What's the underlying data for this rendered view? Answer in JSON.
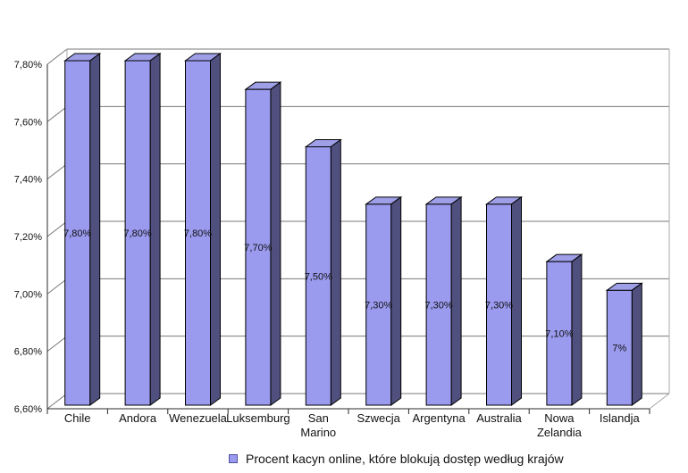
{
  "chart_data": {
    "type": "bar",
    "style_3d": true,
    "categories": [
      "Chile",
      "Andora",
      "Wenezuela",
      "Luksemburg",
      "San\nMarino",
      "Szwecja",
      "Argentyna",
      "Australia",
      "Nowa\nZelandia",
      "Islandja"
    ],
    "values": [
      7.8,
      7.8,
      7.8,
      7.7,
      7.5,
      7.3,
      7.3,
      7.3,
      7.1,
      7.0
    ],
    "value_labels": [
      "7,80%",
      "7,80%",
      "7,80%",
      "7,70%",
      "7,50%",
      "7,30%",
      "7,30%",
      "7,30%",
      "7,10%",
      "7%"
    ],
    "y_axis": {
      "min": 6.6,
      "max": 7.8,
      "step": 0.2,
      "tick_values": [
        6.6,
        6.8,
        7.0,
        7.2,
        7.4,
        7.6,
        7.8
      ],
      "tick_labels": [
        "6,60%",
        "6,80%",
        "7,00%",
        "7,20%",
        "7,40%",
        "7,60%",
        "7,80%"
      ]
    },
    "xlabel": "",
    "ylabel": "",
    "grid": true,
    "legend": {
      "position": "bottom",
      "label": "Procent kacyn online, które blokują dostęp według krajów"
    },
    "colors": {
      "bar_front": "#9a9aee",
      "bar_top": "#9f9fe8",
      "bar_side": "#50507f",
      "bar_outline": "#000000",
      "grid_line": "#787878",
      "frame_line": "#a8a8a8",
      "axis_line": "#2a2a2a",
      "text": "#111111",
      "legend_marker_fill": "#9a9aee",
      "legend_marker_border": "#5050a0"
    }
  }
}
